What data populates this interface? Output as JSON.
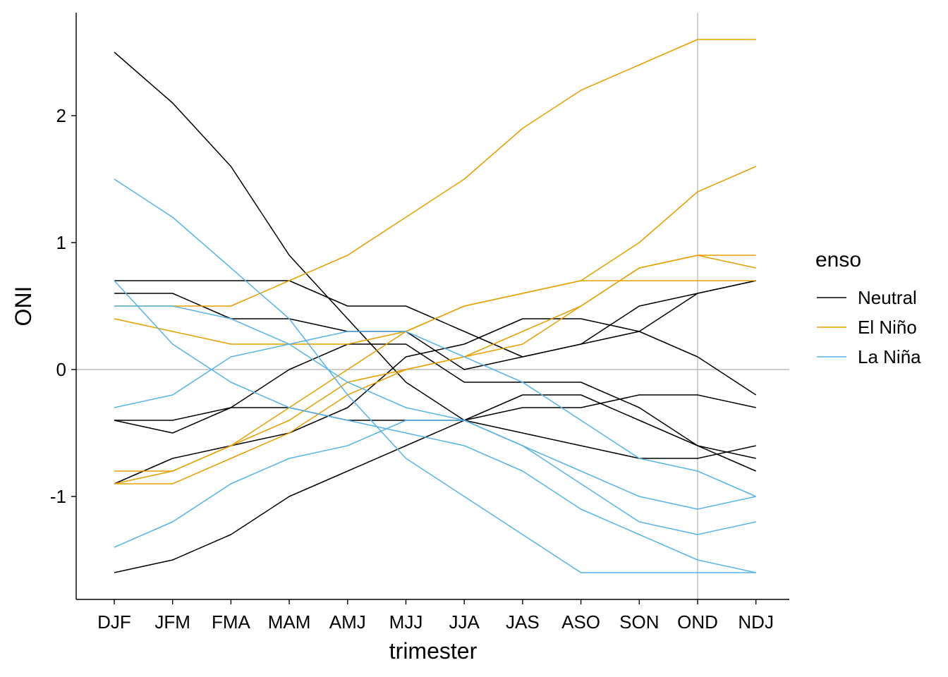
{
  "chart_data": {
    "type": "line",
    "xlabel": "trimester",
    "ylabel": "ONI",
    "categories": [
      "DJF",
      "JFM",
      "FMA",
      "MAM",
      "AMJ",
      "MJJ",
      "JJA",
      "JAS",
      "ASO",
      "SON",
      "OND",
      "NDJ"
    ],
    "yticks": [
      -1,
      0,
      1,
      2
    ],
    "ylim": [
      -1.7,
      2.8
    ],
    "grid": false,
    "reference_lines": {
      "y": 0,
      "x": "OND",
      "color": "#bebebe"
    },
    "legend": {
      "title": "enso",
      "position": "right",
      "entries": [
        {
          "label": "Neutral",
          "color": "#000000"
        },
        {
          "label": "El Niño",
          "color": "#E69F00"
        },
        {
          "label": "La Niña",
          "color": "#56B4E9"
        }
      ]
    },
    "series": [
      {
        "group": "Neutral",
        "values": [
          2.5,
          2.1,
          1.6,
          0.9,
          0.4,
          -0.1,
          -0.4,
          -0.5,
          -0.6,
          -0.7,
          -0.7,
          -0.6
        ]
      },
      {
        "group": "Neutral",
        "values": [
          0.7,
          0.7,
          0.7,
          0.7,
          0.5,
          0.5,
          0.3,
          0.1,
          0.2,
          0.3,
          0.6,
          0.7
        ]
      },
      {
        "group": "Neutral",
        "values": [
          0.6,
          0.6,
          0.4,
          0.4,
          0.3,
          0.3,
          0.0,
          0.1,
          0.2,
          0.5,
          0.6,
          0.7
        ]
      },
      {
        "group": "Neutral",
        "values": [
          -0.4,
          -0.4,
          -0.3,
          -0.3,
          -0.4,
          -0.4,
          -0.4,
          -0.2,
          -0.2,
          -0.4,
          -0.6,
          -0.7
        ]
      },
      {
        "group": "Neutral",
        "values": [
          -0.4,
          -0.5,
          -0.3,
          0.0,
          0.2,
          0.2,
          -0.1,
          -0.1,
          -0.1,
          -0.3,
          -0.6,
          -0.8
        ]
      },
      {
        "group": "Neutral",
        "values": [
          -0.9,
          -0.7,
          -0.6,
          -0.5,
          -0.3,
          0.1,
          0.2,
          0.4,
          0.4,
          0.3,
          0.1,
          -0.2
        ]
      },
      {
        "group": "Neutral",
        "values": [
          -1.6,
          -1.5,
          -1.3,
          -1.0,
          -0.8,
          -0.6,
          -0.4,
          -0.3,
          -0.3,
          -0.2,
          -0.2,
          -0.3
        ]
      },
      {
        "group": "El Niño",
        "values": [
          -0.9,
          -0.8,
          -0.6,
          -0.3,
          0.0,
          0.3,
          0.5,
          0.6,
          0.7,
          0.7,
          0.7,
          0.7
        ]
      },
      {
        "group": "El Niño",
        "values": [
          -0.8,
          -0.8,
          -0.6,
          -0.4,
          -0.1,
          0.0,
          0.1,
          0.3,
          0.5,
          0.8,
          0.9,
          0.8
        ]
      },
      {
        "group": "El Niño",
        "values": [
          -0.9,
          -0.9,
          -0.7,
          -0.5,
          -0.2,
          0.0,
          0.1,
          0.2,
          0.5,
          0.8,
          0.9,
          0.9
        ]
      },
      {
        "group": "El Niño",
        "values": [
          0.4,
          0.3,
          0.2,
          0.2,
          0.2,
          0.3,
          0.5,
          0.6,
          0.7,
          1.0,
          1.4,
          1.6
        ]
      },
      {
        "group": "El Niño",
        "values": [
          0.5,
          0.5,
          0.5,
          0.7,
          0.9,
          1.2,
          1.5,
          1.9,
          2.2,
          2.4,
          2.6,
          2.6
        ]
      },
      {
        "group": "La Niña",
        "values": [
          1.5,
          1.2,
          0.8,
          0.4,
          -0.2,
          -0.7,
          -1.0,
          -1.3,
          -1.6,
          -1.6,
          -1.6,
          -1.6
        ]
      },
      {
        "group": "La Niña",
        "values": [
          0.7,
          0.2,
          -0.1,
          -0.3,
          -0.4,
          -0.5,
          -0.6,
          -0.8,
          -1.1,
          -1.3,
          -1.5,
          -1.6
        ]
      },
      {
        "group": "La Niña",
        "values": [
          0.5,
          0.5,
          0.4,
          0.2,
          -0.1,
          -0.3,
          -0.4,
          -0.6,
          -0.9,
          -1.2,
          -1.3,
          -1.2
        ]
      },
      {
        "group": "La Niña",
        "values": [
          -0.3,
          -0.2,
          0.1,
          0.2,
          0.3,
          0.3,
          0.1,
          -0.1,
          -0.4,
          -0.7,
          -0.8,
          -1.0
        ]
      },
      {
        "group": "La Niña",
        "values": [
          -1.4,
          -1.2,
          -0.9,
          -0.7,
          -0.6,
          -0.4,
          -0.4,
          -0.6,
          -0.8,
          -1.0,
          -1.1,
          -1.0
        ]
      }
    ]
  }
}
